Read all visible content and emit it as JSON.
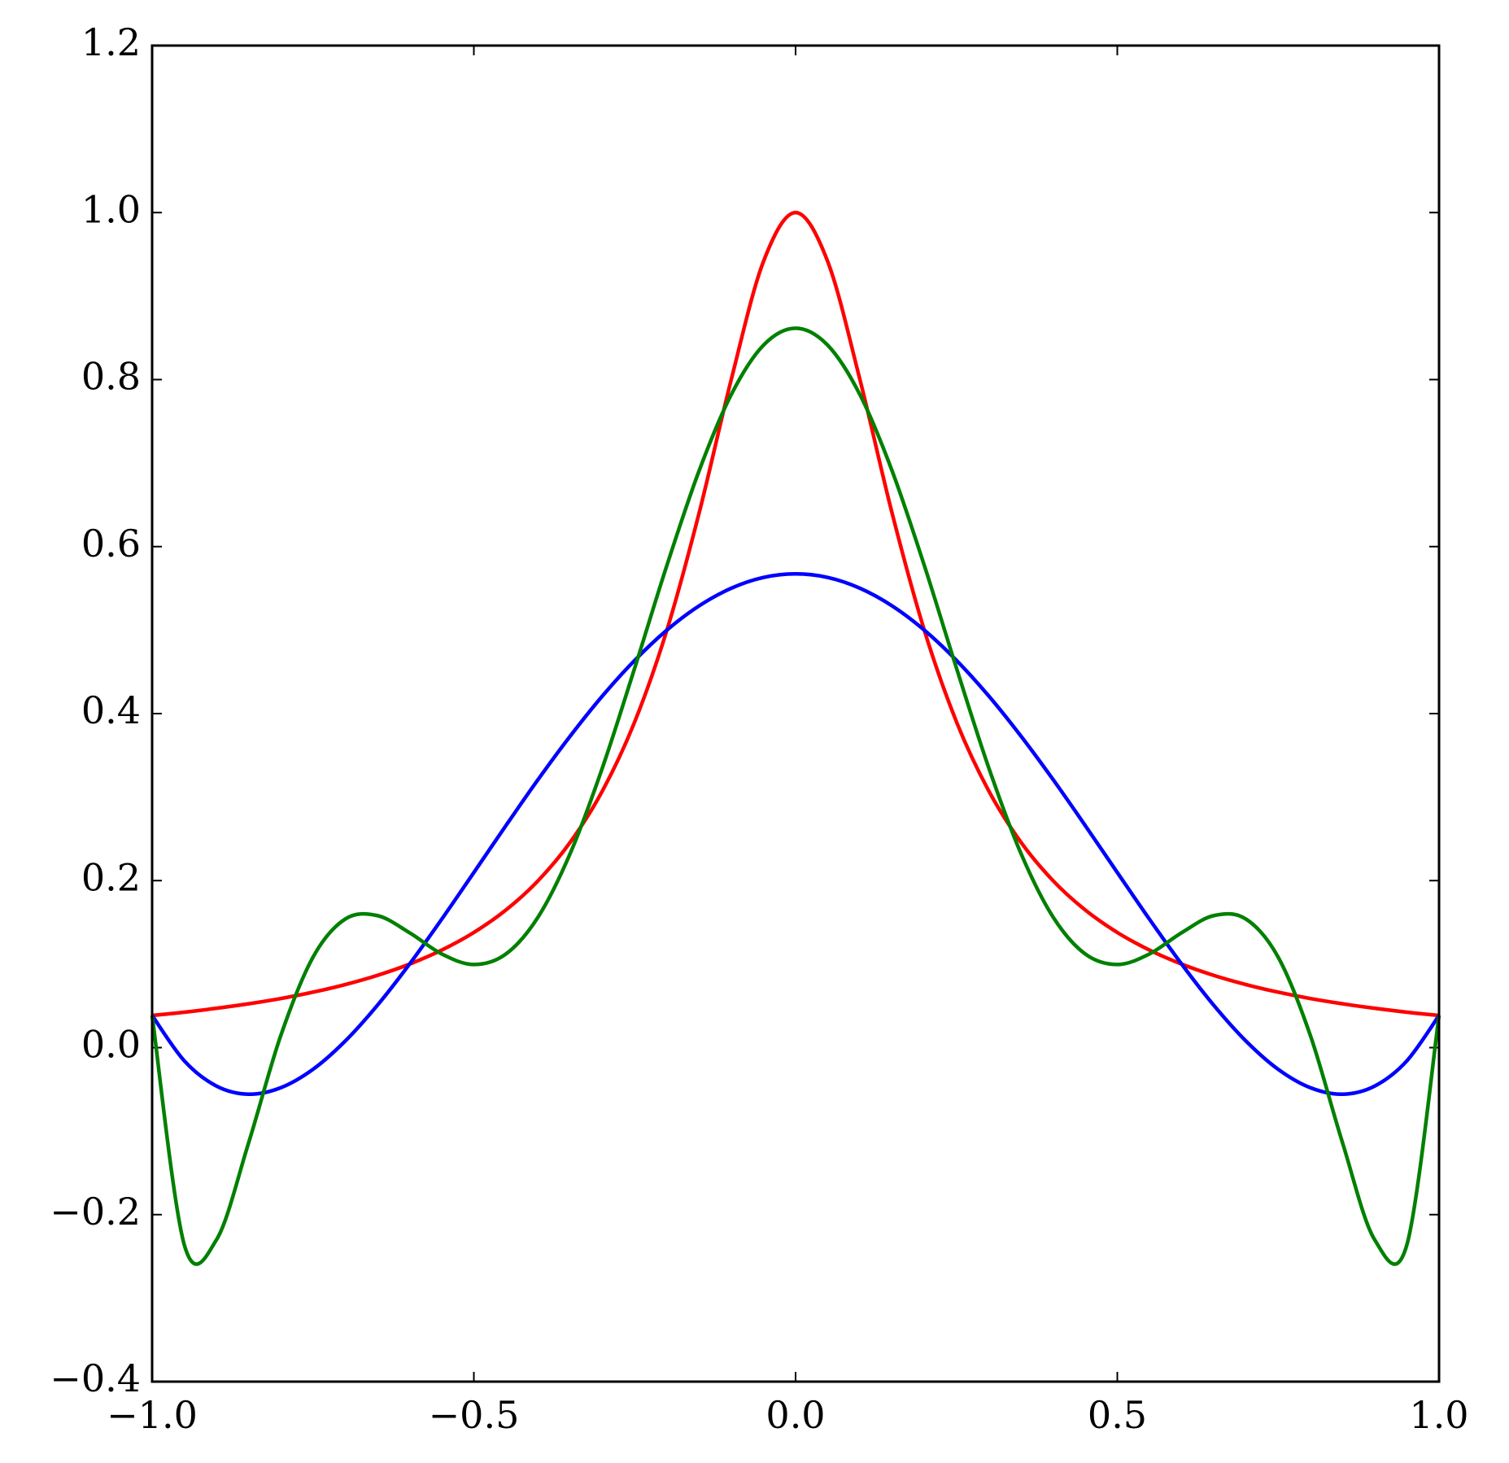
{
  "chart_data": {
    "type": "line",
    "x": [
      -1,
      -0.95,
      -0.9,
      -0.85,
      -0.8,
      -0.75,
      -0.7,
      -0.65,
      -0.6,
      -0.55,
      -0.5,
      -0.45,
      -0.4,
      -0.35,
      -0.3,
      -0.25,
      -0.2,
      -0.15,
      -0.1,
      -0.05,
      0,
      0.05,
      0.1,
      0.15,
      0.2,
      0.25,
      0.3,
      0.35,
      0.4,
      0.45,
      0.5,
      0.55,
      0.6,
      0.65,
      0.7,
      0.75,
      0.8,
      0.85,
      0.9,
      0.95,
      1
    ],
    "series": [
      {
        "color": "#ff0000",
        "values": [
          0.0385,
          0.0424,
          0.0471,
          0.0525,
          0.0588,
          0.0664,
          0.0755,
          0.0865,
          0.1,
          0.1168,
          0.1379,
          0.1649,
          0.2,
          0.2462,
          0.3077,
          0.3902,
          0.5,
          0.64,
          0.8,
          0.9412,
          1,
          0.9412,
          0.8,
          0.64,
          0.5,
          0.3902,
          0.3077,
          0.2462,
          0.2,
          0.1649,
          0.1379,
          0.1168,
          0.1,
          0.0865,
          0.0755,
          0.0664,
          0.0588,
          0.0525,
          0.0471,
          0.0424,
          0.0385
        ]
      },
      {
        "color": "#0000ff",
        "values": [
          0.0385,
          -0.0158,
          -0.046,
          -0.0558,
          -0.048,
          -0.026,
          0.0078,
          0.0506,
          0.1,
          0.1537,
          0.2097,
          0.2661,
          0.3212,
          0.3733,
          0.4213,
          0.4638,
          0.5,
          0.529,
          0.5501,
          0.563,
          0.5673,
          0.563,
          0.5501,
          0.529,
          0.5,
          0.4638,
          0.4213,
          0.3733,
          0.3212,
          0.2661,
          0.2097,
          0.1537,
          0.1,
          0.0506,
          0.0078,
          -0.026,
          -0.048,
          -0.0558,
          -0.046,
          -0.0158,
          0.0385
        ]
      },
      {
        "color": "#008000",
        "values": [
          0.0385,
          -0.2362,
          -0.2301,
          -0.1139,
          0.0146,
          0.1083,
          0.1539,
          0.1581,
          0.1376,
          0.1122,
          0.0995,
          0.1122,
          0.1566,
          0.233,
          0.3356,
          0.4546,
          0.5775,
          0.6907,
          0.782,
          0.8411,
          0.8615,
          0.8411,
          0.782,
          0.6907,
          0.5775,
          0.4546,
          0.3356,
          0.233,
          0.1566,
          0.1122,
          0.0995,
          0.1122,
          0.1376,
          0.1581,
          0.1539,
          0.1083,
          0.0146,
          -0.1139,
          -0.2301,
          -0.2362,
          0.0385
        ]
      }
    ],
    "xlim": [
      -1,
      1
    ],
    "xticks": [
      {
        "value": -1,
        "label": "−1.0"
      },
      {
        "value": -0.5,
        "label": "−0.5"
      },
      {
        "value": 0,
        "label": "0.0"
      },
      0.5,
      {
        "value": 1,
        "label": "1.0"
      }
    ],
    "ylim": [
      -0.4,
      1.2
    ],
    "yticks": [
      {
        "value": -0.4,
        "label": "−0.4"
      },
      {
        "value": -0.2,
        "label": "−0.2"
      },
      {
        "value": 0,
        "label": "0.0"
      },
      0.2,
      0.4,
      0.6,
      0.8,
      {
        "value": 1,
        "label": "1.0"
      },
      1.2
    ],
    "grid": false
  }
}
